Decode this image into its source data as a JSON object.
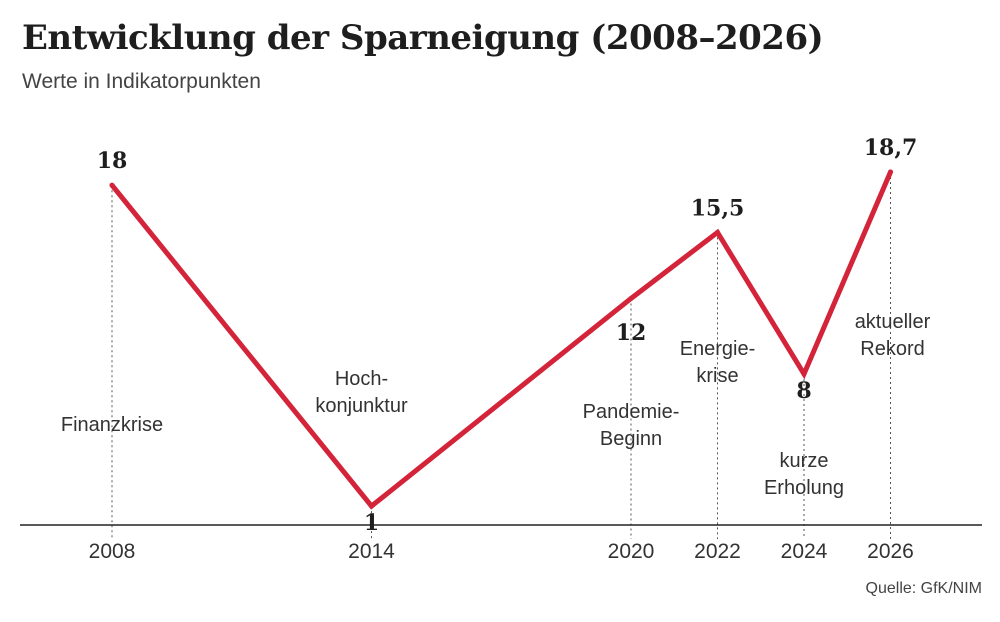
{
  "title": "Entwicklung der Sparneigung (2008–2026)",
  "subtitle": "Werte in Indikatorpunkten",
  "source": "Quelle: GfK/NIM",
  "colors": {
    "line": "#d4243a",
    "axis": "#222222",
    "guide": "#555555"
  },
  "chart_data": {
    "type": "line",
    "title": "Entwicklung der Sparneigung (2008–2026)",
    "xlabel": "",
    "ylabel": "",
    "x": [
      2008,
      2014,
      2020,
      2022,
      2024,
      2026
    ],
    "xticks": [
      "2008",
      "2014",
      "2020",
      "2022",
      "2024",
      "2026"
    ],
    "series": [
      {
        "values": [
          18,
          1,
          12,
          15.5,
          8,
          18.7
        ]
      }
    ],
    "value_labels": [
      "18",
      "1",
      "12",
      "15,5",
      "8",
      "18,7"
    ],
    "annotations": [
      {
        "lines": [
          "Finanzkrise"
        ]
      },
      {
        "lines": [
          "Hoch-",
          "konjunktur"
        ]
      },
      {
        "lines": [
          "Pandemie-",
          "Beginn"
        ]
      },
      {
        "lines": [
          "Energie-",
          "krise"
        ]
      },
      {
        "lines": [
          "kurze",
          "Erholung"
        ]
      },
      {
        "lines": [
          "aktueller",
          "Rekord"
        ]
      }
    ],
    "grid": false,
    "legend": "none"
  }
}
